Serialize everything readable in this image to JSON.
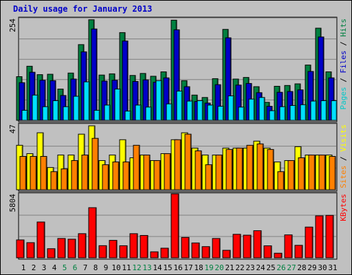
{
  "page": {
    "title": "Daily usage for January 2013"
  },
  "chart_data": [
    {
      "type": "bar",
      "panel": "hits_files_pages",
      "max_label": "254",
      "ymax": 254,
      "legend": [
        {
          "text": "Pages",
          "color": "#00c8c8"
        },
        {
          "text": " / ",
          "color": "#000000"
        },
        {
          "text": "Files",
          "color": "#0000c8"
        },
        {
          "text": " / ",
          "color": "#000000"
        },
        {
          "text": "Hits",
          "color": "#008040"
        }
      ],
      "categories": [
        "1",
        "2",
        "3",
        "4",
        "5",
        "6",
        "7",
        "8",
        "9",
        "10",
        "11",
        "12",
        "13",
        "14",
        "15",
        "16",
        "17",
        "18",
        "19",
        "20",
        "21",
        "22",
        "23",
        "24",
        "25",
        "26",
        "27",
        "28",
        "29",
        "30",
        "31"
      ],
      "series": [
        {
          "name": "Hits",
          "color": "#008040",
          "values": [
            109,
            135,
            114,
            115,
            78,
            118,
            189,
            251,
            113,
            116,
            219,
            112,
            117,
            110,
            121,
            250,
            99,
            63,
            57,
            104,
            227,
            103,
            107,
            84,
            45,
            85,
            87,
            91,
            138,
            230,
            121
          ]
        },
        {
          "name": "Files",
          "color": "#0000c8",
          "values": [
            94,
            120,
            100,
            99,
            62,
            103,
            171,
            228,
            98,
            100,
            198,
            97,
            101,
            95,
            106,
            226,
            84,
            47,
            43,
            89,
            206,
            88,
            92,
            69,
            35,
            70,
            72,
            76,
            122,
            208,
            106
          ]
        },
        {
          "name": "Pages",
          "color": "#00e0ff",
          "values": [
            25,
            63,
            34,
            49,
            34,
            60,
            96,
            25,
            38,
            78,
            23,
            38,
            33,
            99,
            41,
            73,
            48,
            49,
            38,
            35,
            61,
            33,
            53,
            57,
            24,
            34,
            37,
            39,
            48,
            49,
            49
          ]
        }
      ]
    },
    {
      "type": "bar",
      "panel": "visits_sites",
      "max_label": "47",
      "ymax": 47,
      "legend": [
        {
          "text": "Sites",
          "color": "#ff8000"
        },
        {
          "text": " / ",
          "color": "#000000"
        },
        {
          "text": "Visits",
          "color": "#ffff00"
        }
      ],
      "categories": [
        "1",
        "2",
        "3",
        "4",
        "5",
        "6",
        "7",
        "8",
        "9",
        "10",
        "11",
        "12",
        "13",
        "14",
        "15",
        "16",
        "17",
        "18",
        "19",
        "20",
        "21",
        "22",
        "23",
        "24",
        "25",
        "26",
        "27",
        "28",
        "29",
        "30",
        "31"
      ],
      "series": [
        {
          "name": "Visits",
          "color": "#ffff00",
          "values": [
            32,
            26,
            41,
            16,
            25,
            25,
            40,
            46,
            21,
            25,
            36,
            23,
            25,
            21,
            26,
            36,
            41,
            30,
            25,
            25,
            30,
            30,
            30,
            35,
            30,
            20,
            21,
            31,
            25,
            25,
            25
          ]
        },
        {
          "name": "Sites",
          "color": "#ff8000",
          "values": [
            24,
            24,
            24,
            13,
            15,
            21,
            25,
            37,
            18,
            20,
            20,
            32,
            25,
            21,
            26,
            36,
            40,
            28,
            18,
            25,
            29,
            30,
            32,
            33,
            29,
            13,
            21,
            23,
            25,
            25,
            24
          ]
        }
      ]
    },
    {
      "type": "bar",
      "panel": "kbytes",
      "max_label": "5804",
      "ymax": 5804,
      "legend": [
        {
          "text": "KBytes",
          "color": "#ff0000"
        }
      ],
      "categories": [
        "1",
        "2",
        "3",
        "4",
        "5",
        "6",
        "7",
        "8",
        "9",
        "10",
        "11",
        "12",
        "13",
        "14",
        "15",
        "16",
        "17",
        "18",
        "19",
        "20",
        "21",
        "22",
        "23",
        "24",
        "25",
        "26",
        "27",
        "28",
        "29",
        "30",
        "31"
      ],
      "series": [
        {
          "name": "KBytes",
          "color": "#ff0000",
          "values": [
            1625,
            1377,
            3250,
            827,
            1756,
            1692,
            2193,
            4552,
            1103,
            1585,
            1098,
            2192,
            2031,
            545,
            874,
            5804,
            1851,
            1350,
            1016,
            1756,
            683,
            2135,
            2056,
            2461,
            1090,
            420,
            2083,
            1135,
            2792,
            3809,
            3854
          ]
        }
      ]
    }
  ],
  "x_labels": [
    {
      "t": "1",
      "c": "#000000"
    },
    {
      "t": "2",
      "c": "#000000"
    },
    {
      "t": "3",
      "c": "#000000"
    },
    {
      "t": "4",
      "c": "#000000"
    },
    {
      "t": "5",
      "c": "#008040"
    },
    {
      "t": "6",
      "c": "#008040"
    },
    {
      "t": "7",
      "c": "#000000"
    },
    {
      "t": "8",
      "c": "#000000"
    },
    {
      "t": "9",
      "c": "#000000"
    },
    {
      "t": "10",
      "c": "#000000"
    },
    {
      "t": "11",
      "c": "#000000"
    },
    {
      "t": "12",
      "c": "#008040"
    },
    {
      "t": "13",
      "c": "#008040"
    },
    {
      "t": "14",
      "c": "#000000"
    },
    {
      "t": "15",
      "c": "#000000"
    },
    {
      "t": "16",
      "c": "#000000"
    },
    {
      "t": "17",
      "c": "#000000"
    },
    {
      "t": "18",
      "c": "#000000"
    },
    {
      "t": "19",
      "c": "#008040"
    },
    {
      "t": "20",
      "c": "#008040"
    },
    {
      "t": "21",
      "c": "#000000"
    },
    {
      "t": "22",
      "c": "#000000"
    },
    {
      "t": "23",
      "c": "#000000"
    },
    {
      "t": "24",
      "c": "#000000"
    },
    {
      "t": "25",
      "c": "#000000"
    },
    {
      "t": "26",
      "c": "#008040"
    },
    {
      "t": "27",
      "c": "#008040"
    },
    {
      "t": "28",
      "c": "#000000"
    },
    {
      "t": "29",
      "c": "#000000"
    },
    {
      "t": "30",
      "c": "#000000"
    },
    {
      "t": "31",
      "c": "#000000"
    }
  ]
}
